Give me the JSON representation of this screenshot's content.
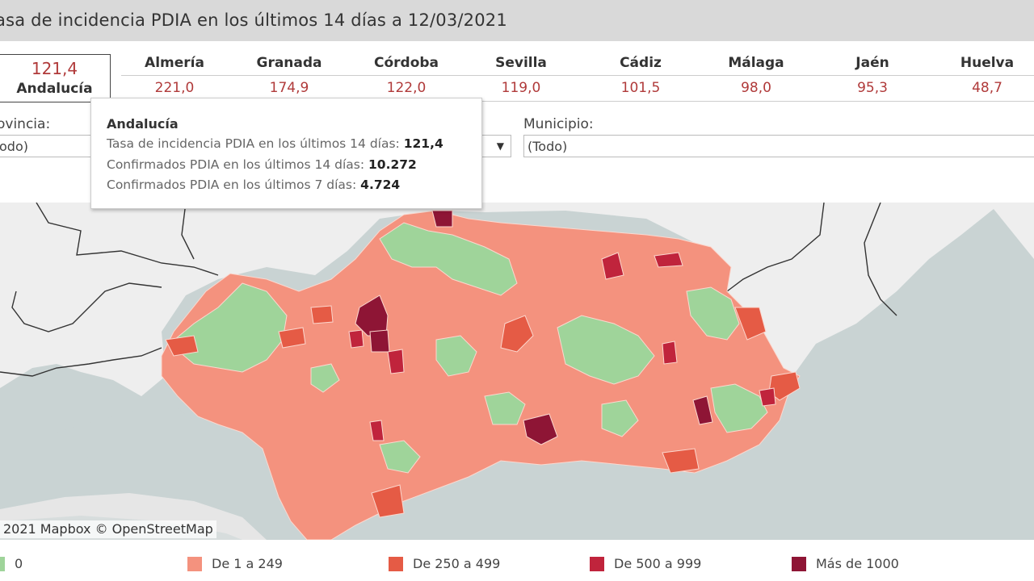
{
  "title": "asa de incidencia PDIA en los últimos 14 días a 12/03/2021",
  "summary": {
    "value": "121,4",
    "name": "Andalucía"
  },
  "provinces": [
    {
      "name": "Almería",
      "value": "221,0"
    },
    {
      "name": "Granada",
      "value": "174,9"
    },
    {
      "name": "Córdoba",
      "value": "122,0"
    },
    {
      "name": "Sevilla",
      "value": "119,0"
    },
    {
      "name": "Cádiz",
      "value": "101,5"
    },
    {
      "name": "Málaga",
      "value": "98,0"
    },
    {
      "name": "Jaén",
      "value": "95,3"
    },
    {
      "name": "Huelva",
      "value": "48,7"
    }
  ],
  "filters": {
    "provincia": {
      "label": "ovincia:",
      "value": "odo)"
    },
    "municipio": {
      "label": "Municipio:",
      "value": "(Todo)"
    }
  },
  "tooltip": {
    "title": "Andalucía",
    "rows": [
      {
        "label": "Tasa de incidencia PDIA en los últimos 14 días:",
        "value": "121,4"
      },
      {
        "label": "Confirmados PDIA en los últimos 14 días:",
        "value": "10.272"
      },
      {
        "label": "Confirmados PDIA en los últimos 7 días:",
        "value": "4.724"
      }
    ]
  },
  "map": {
    "attribution": "2021 Mapbox © OpenStreetMap"
  },
  "legend": [
    {
      "label": "0",
      "color": "#9fd49a"
    },
    {
      "label": "De 1 a 249",
      "color": "#f4927e"
    },
    {
      "label": "De 250 a 499",
      "color": "#e55b45"
    },
    {
      "label": "De 500 a 999",
      "color": "#c0243c"
    },
    {
      "label": "Más de 1000",
      "color": "#8e1535"
    }
  ],
  "colors": {
    "accent": "#b03a3a",
    "sea": "#c9d3d3",
    "land": "#f0f0f0"
  }
}
